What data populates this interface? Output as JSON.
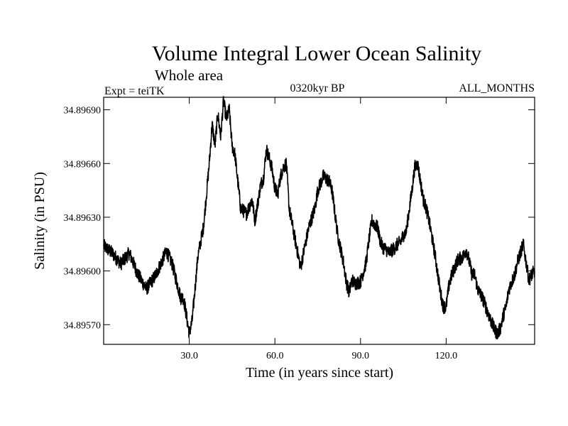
{
  "chart_data": {
    "type": "line",
    "title": "Volume Integral Lower Ocean Salinity",
    "subtitle": "Whole area",
    "experiment": "Expt = teiTK",
    "period": "0320kyr BP",
    "months": "ALL_MONTHS",
    "xlabel": "Time (in years since start)",
    "ylabel": "Salinity (in PSU)",
    "xlim": [
      0,
      151
    ],
    "ylim": [
      34.89559,
      34.89697
    ],
    "xticks": [
      30,
      60,
      90,
      120
    ],
    "xtick_labels": [
      "30.0",
      "60.0",
      "90.0",
      "120.0"
    ],
    "yticks": [
      34.8957,
      34.896,
      34.8963,
      34.8966,
      34.8969
    ],
    "ytick_labels": [
      "34.89570",
      "34.89600",
      "34.89630",
      "34.89660",
      "34.89690"
    ],
    "series": [
      {
        "name": "Salinity",
        "color": "#000000",
        "x": [
          0,
          3,
          6,
          9,
          12,
          15,
          18,
          22,
          24,
          27,
          28,
          30,
          31,
          33,
          35,
          37,
          38,
          39,
          40,
          41,
          42,
          43,
          44,
          45,
          46,
          47,
          48,
          50,
          52,
          53,
          55,
          56,
          57,
          58,
          59,
          60,
          61,
          62,
          63,
          64,
          65,
          67,
          69,
          70,
          72,
          74,
          75,
          77,
          79,
          80,
          82,
          84,
          85,
          86,
          87,
          88,
          90,
          92,
          93,
          94,
          95,
          96,
          97,
          98,
          99,
          100,
          102,
          103,
          104,
          105,
          106,
          108,
          109,
          110,
          111,
          112,
          113,
          114,
          116,
          118,
          119,
          120,
          121,
          122,
          124,
          126,
          127,
          128,
          129,
          130,
          131,
          133,
          135,
          137,
          138,
          139,
          140,
          141,
          142,
          143,
          144,
          145,
          146,
          147,
          148,
          149,
          150,
          151
        ],
        "values": [
          34.89614,
          34.8961,
          34.89604,
          34.8961,
          34.89598,
          34.8959,
          34.89597,
          34.89611,
          34.89604,
          34.89585,
          34.89585,
          34.89565,
          34.89572,
          34.89608,
          34.89625,
          34.8966,
          34.89682,
          34.8967,
          34.89688,
          34.89675,
          34.89695,
          34.89685,
          34.8969,
          34.8967,
          34.89665,
          34.8965,
          34.89635,
          34.89632,
          34.8964,
          34.89628,
          34.89648,
          34.89652,
          34.89668,
          34.89663,
          34.89657,
          34.89646,
          34.89643,
          34.89653,
          34.89658,
          34.8966,
          34.89635,
          34.89618,
          34.89602,
          34.8961,
          34.89625,
          34.89635,
          34.89645,
          34.89653,
          34.8965,
          34.89645,
          34.8962,
          34.89605,
          34.89594,
          34.89588,
          34.89595,
          34.89593,
          34.89594,
          34.89605,
          34.89618,
          34.89628,
          34.89626,
          34.89624,
          34.89616,
          34.89613,
          34.89612,
          34.8961,
          34.89613,
          34.89615,
          34.89616,
          34.8962,
          34.89622,
          34.89645,
          34.89658,
          34.8966,
          34.8965,
          34.8964,
          34.89635,
          34.89628,
          34.8961,
          34.89588,
          34.8958,
          34.8958,
          34.89592,
          34.89598,
          34.89606,
          34.89608,
          34.89612,
          34.89606,
          34.89598,
          34.89598,
          34.8959,
          34.89584,
          34.89575,
          34.89567,
          34.89565,
          34.89568,
          34.89575,
          34.8958,
          34.8959,
          34.89594,
          34.89598,
          34.89605,
          34.8961,
          34.89615,
          34.89605,
          34.89595,
          34.89598,
          34.896
        ]
      }
    ]
  }
}
